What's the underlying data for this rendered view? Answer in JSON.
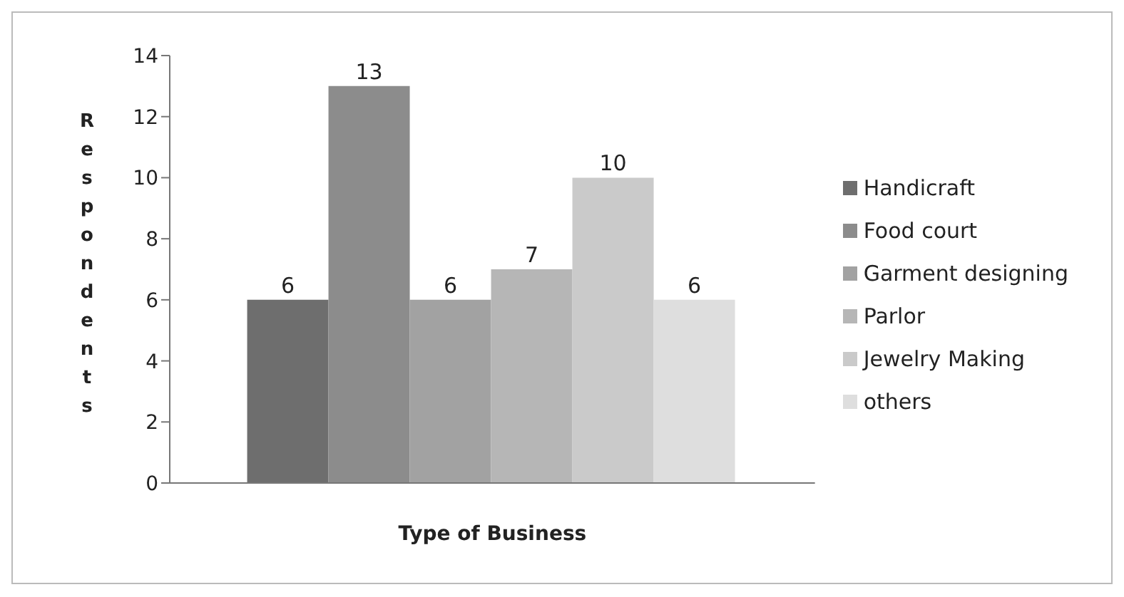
{
  "chart_data": {
    "type": "bar",
    "xlabel": "Type of Business",
    "ylabel": "Respondents",
    "categories": [
      null
    ],
    "series": [
      {
        "name": "Handicraft",
        "color": "#6e6e6e",
        "values": [
          6
        ]
      },
      {
        "name": "Food court",
        "color": "#8c8c8c",
        "values": [
          13
        ]
      },
      {
        "name": "Garment designing",
        "color": "#a2a2a2",
        "values": [
          6
        ]
      },
      {
        "name": "Parlor",
        "color": "#b6b6b6",
        "values": [
          7
        ]
      },
      {
        "name": "Jewelry Making",
        "color": "#cacaca",
        "values": [
          10
        ]
      },
      {
        "name": "others",
        "color": "#dedede",
        "values": [
          6
        ]
      }
    ],
    "ylim": [
      0,
      14
    ],
    "yticks": [
      0,
      2,
      4,
      6,
      8,
      10,
      12,
      14
    ],
    "data_labels": true,
    "legend": "right",
    "grid": false
  }
}
